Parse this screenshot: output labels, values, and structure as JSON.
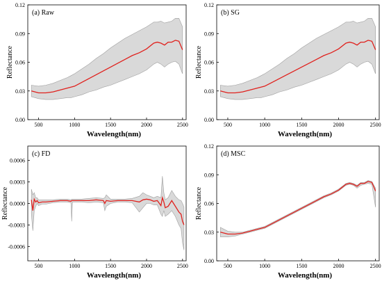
{
  "figure": {
    "background": "#ffffff",
    "band_color": "#d9d9d9",
    "band_stroke": "#9e9e9e",
    "line_color": "#e0201c"
  },
  "chart_data": [
    {
      "type": "area",
      "title": "(a) Raw",
      "xlabel": "Wavelength(nm)",
      "ylabel": "Reflectance",
      "xlim": [
        350,
        2550
      ],
      "ylim": [
        0,
        0.12
      ],
      "xticks": [
        "500",
        "1000",
        "1500",
        "2000",
        "2500"
      ],
      "yticks": [
        "0.00",
        "0.03",
        "0.06",
        "0.09",
        "0.12"
      ],
      "grid": false,
      "series": [
        {
          "x": [
            400,
            500,
            600,
            700,
            800,
            900,
            950,
            1000,
            1100,
            1200,
            1300,
            1400,
            1500,
            1600,
            1700,
            1800,
            1900,
            2000,
            2100,
            2150,
            2200,
            2250,
            2300,
            2350,
            2400,
            2450,
            2500
          ],
          "mean": [
            0.03,
            0.028,
            0.028,
            0.029,
            0.031,
            0.033,
            0.034,
            0.035,
            0.039,
            0.043,
            0.047,
            0.051,
            0.055,
            0.059,
            0.063,
            0.067,
            0.07,
            0.074,
            0.08,
            0.081,
            0.08,
            0.078,
            0.081,
            0.081,
            0.083,
            0.082,
            0.073
          ],
          "upper": [
            0.036,
            0.035,
            0.036,
            0.038,
            0.041,
            0.044,
            0.046,
            0.048,
            0.053,
            0.058,
            0.064,
            0.069,
            0.075,
            0.08,
            0.085,
            0.089,
            0.093,
            0.097,
            0.102,
            0.102,
            0.103,
            0.101,
            0.102,
            0.103,
            0.106,
            0.106,
            0.097
          ],
          "lower": [
            0.024,
            0.022,
            0.021,
            0.021,
            0.022,
            0.023,
            0.023,
            0.024,
            0.026,
            0.029,
            0.031,
            0.034,
            0.036,
            0.039,
            0.042,
            0.045,
            0.048,
            0.052,
            0.058,
            0.06,
            0.058,
            0.055,
            0.058,
            0.06,
            0.061,
            0.058,
            0.048
          ]
        }
      ]
    },
    {
      "type": "area",
      "title": "(b) SG",
      "xlabel": "Wavelength(nm)",
      "ylabel": "Reflectance",
      "xlim": [
        350,
        2550
      ],
      "ylim": [
        0,
        0.12
      ],
      "xticks": [
        "500",
        "1000",
        "1500",
        "2000",
        "2500"
      ],
      "yticks": [
        "0.00",
        "0.03",
        "0.06",
        "0.09",
        "0.12"
      ],
      "grid": false,
      "series": [
        {
          "x": [
            400,
            500,
            600,
            700,
            800,
            900,
            950,
            1000,
            1100,
            1200,
            1300,
            1400,
            1500,
            1600,
            1700,
            1800,
            1900,
            2000,
            2100,
            2150,
            2200,
            2250,
            2300,
            2350,
            2400,
            2450,
            2500
          ],
          "mean": [
            0.03,
            0.028,
            0.028,
            0.029,
            0.031,
            0.033,
            0.034,
            0.035,
            0.039,
            0.043,
            0.047,
            0.051,
            0.055,
            0.059,
            0.063,
            0.067,
            0.07,
            0.074,
            0.08,
            0.081,
            0.08,
            0.078,
            0.081,
            0.081,
            0.083,
            0.082,
            0.073
          ],
          "upper": [
            0.036,
            0.035,
            0.036,
            0.038,
            0.041,
            0.044,
            0.046,
            0.048,
            0.053,
            0.058,
            0.064,
            0.069,
            0.075,
            0.08,
            0.085,
            0.089,
            0.093,
            0.097,
            0.102,
            0.102,
            0.103,
            0.101,
            0.102,
            0.103,
            0.106,
            0.106,
            0.097
          ],
          "lower": [
            0.024,
            0.022,
            0.021,
            0.021,
            0.022,
            0.023,
            0.023,
            0.024,
            0.026,
            0.029,
            0.031,
            0.034,
            0.036,
            0.039,
            0.042,
            0.045,
            0.048,
            0.052,
            0.058,
            0.06,
            0.058,
            0.055,
            0.058,
            0.06,
            0.061,
            0.058,
            0.048
          ]
        }
      ]
    },
    {
      "type": "area",
      "title": "(c) FD",
      "xlabel": "Wavelength(nm)",
      "ylabel": "Reflectance",
      "xlim": [
        350,
        2550
      ],
      "ylim": [
        -0.0008,
        0.0008
      ],
      "xticks": [
        "500",
        "1000",
        "1500",
        "2000",
        "2500"
      ],
      "yticks": [
        "-0.0006",
        "-0.0003",
        "0.0000",
        "0.0003",
        "0.0006"
      ],
      "grid": false,
      "series": [
        {
          "x": [
            400,
            420,
            440,
            460,
            480,
            500,
            550,
            600,
            700,
            800,
            900,
            950,
            960,
            970,
            1000,
            1100,
            1200,
            1300,
            1400,
            1420,
            1440,
            1500,
            1600,
            1700,
            1800,
            1900,
            1950,
            2000,
            2050,
            2100,
            2150,
            2200,
            2220,
            2240,
            2260,
            2300,
            2350,
            2400,
            2450,
            2480,
            2500,
            2520
          ],
          "mean": [
            5e-05,
            -0.0001,
            6e-05,
            2e-05,
            4e-05,
            1e-05,
            2e-05,
            2e-05,
            3e-05,
            4e-05,
            4e-05,
            3e-05,
            4e-05,
            4e-05,
            4e-05,
            4e-05,
            4e-05,
            5e-05,
            4e-05,
            0.0,
            4e-05,
            3e-05,
            4e-05,
            4e-05,
            4e-05,
            2e-05,
            5e-05,
            6e-05,
            5e-05,
            3e-05,
            4e-05,
            -3e-05,
            8e-05,
            2e-05,
            -6e-05,
            -4e-05,
            4e-05,
            -4e-05,
            -0.00012,
            -0.00015,
            -0.00025,
            -0.0003
          ],
          "upper": [
            0.0002,
            0.00012,
            0.00015,
            8e-05,
            8e-05,
            5e-05,
            5e-05,
            5e-05,
            5e-05,
            6e-05,
            6e-05,
            5e-05,
            6e-05,
            6e-05,
            6e-05,
            6e-05,
            7e-05,
            8e-05,
            7e-05,
            8e-05,
            0.00012,
            6e-05,
            6e-05,
            6e-05,
            7e-05,
            0.0001,
            0.00015,
            0.00012,
            0.0001,
            8e-05,
            0.0001,
            8e-05,
            0.00038,
            0.00015,
            5e-05,
            8e-05,
            0.00018,
            0.0001,
            5e-05,
            4e-05,
            0.0,
            -5e-05
          ],
          "lower": [
            -0.00015,
            -0.00038,
            -0.0001,
            -4e-05,
            0.0,
            -3e-05,
            -1e-05,
            -1e-05,
            1e-05,
            2e-05,
            2e-05,
            1e-05,
            -0.00025,
            2e-05,
            2e-05,
            2e-05,
            1e-05,
            2e-05,
            1e-05,
            -0.0001,
            -4e-05,
            0.0,
            2e-05,
            2e-05,
            1e-05,
            -0.00012,
            -6e-05,
            0.0,
            0.0,
            -2e-05,
            -2e-05,
            -0.00015,
            -0.00018,
            -0.0001,
            -0.00018,
            -0.00015,
            -0.0001,
            -0.00018,
            -0.0003,
            -0.00035,
            -0.00055,
            -0.00065
          ]
        }
      ]
    },
    {
      "type": "area",
      "title": "(d) MSC",
      "xlabel": "Wavelength(nm)",
      "ylabel": "Reflectance",
      "xlim": [
        350,
        2550
      ],
      "ylim": [
        0,
        0.12
      ],
      "xticks": [
        "500",
        "1000",
        "1500",
        "2000",
        "2500"
      ],
      "yticks": [
        "0.00",
        "0.03",
        "0.06",
        "0.09",
        "0.12"
      ],
      "grid": false,
      "series": [
        {
          "x": [
            400,
            500,
            600,
            700,
            800,
            900,
            950,
            1000,
            1100,
            1200,
            1300,
            1400,
            1500,
            1600,
            1700,
            1800,
            1900,
            2000,
            2100,
            2150,
            2200,
            2250,
            2300,
            2350,
            2400,
            2450,
            2500
          ],
          "mean": [
            0.03,
            0.028,
            0.028,
            0.029,
            0.031,
            0.033,
            0.034,
            0.035,
            0.039,
            0.043,
            0.047,
            0.051,
            0.055,
            0.059,
            0.063,
            0.067,
            0.07,
            0.074,
            0.08,
            0.081,
            0.08,
            0.078,
            0.081,
            0.081,
            0.083,
            0.082,
            0.073
          ],
          "upper": [
            0.035,
            0.031,
            0.03,
            0.03,
            0.032,
            0.034,
            0.035,
            0.036,
            0.04,
            0.044,
            0.048,
            0.052,
            0.056,
            0.06,
            0.064,
            0.068,
            0.071,
            0.075,
            0.081,
            0.082,
            0.081,
            0.079,
            0.082,
            0.082,
            0.084,
            0.083,
            0.076
          ],
          "lower": [
            0.025,
            0.025,
            0.026,
            0.028,
            0.03,
            0.032,
            0.033,
            0.034,
            0.038,
            0.042,
            0.046,
            0.05,
            0.054,
            0.058,
            0.062,
            0.066,
            0.069,
            0.073,
            0.079,
            0.08,
            0.079,
            0.076,
            0.079,
            0.08,
            0.081,
            0.08,
            0.056
          ]
        }
      ]
    }
  ]
}
